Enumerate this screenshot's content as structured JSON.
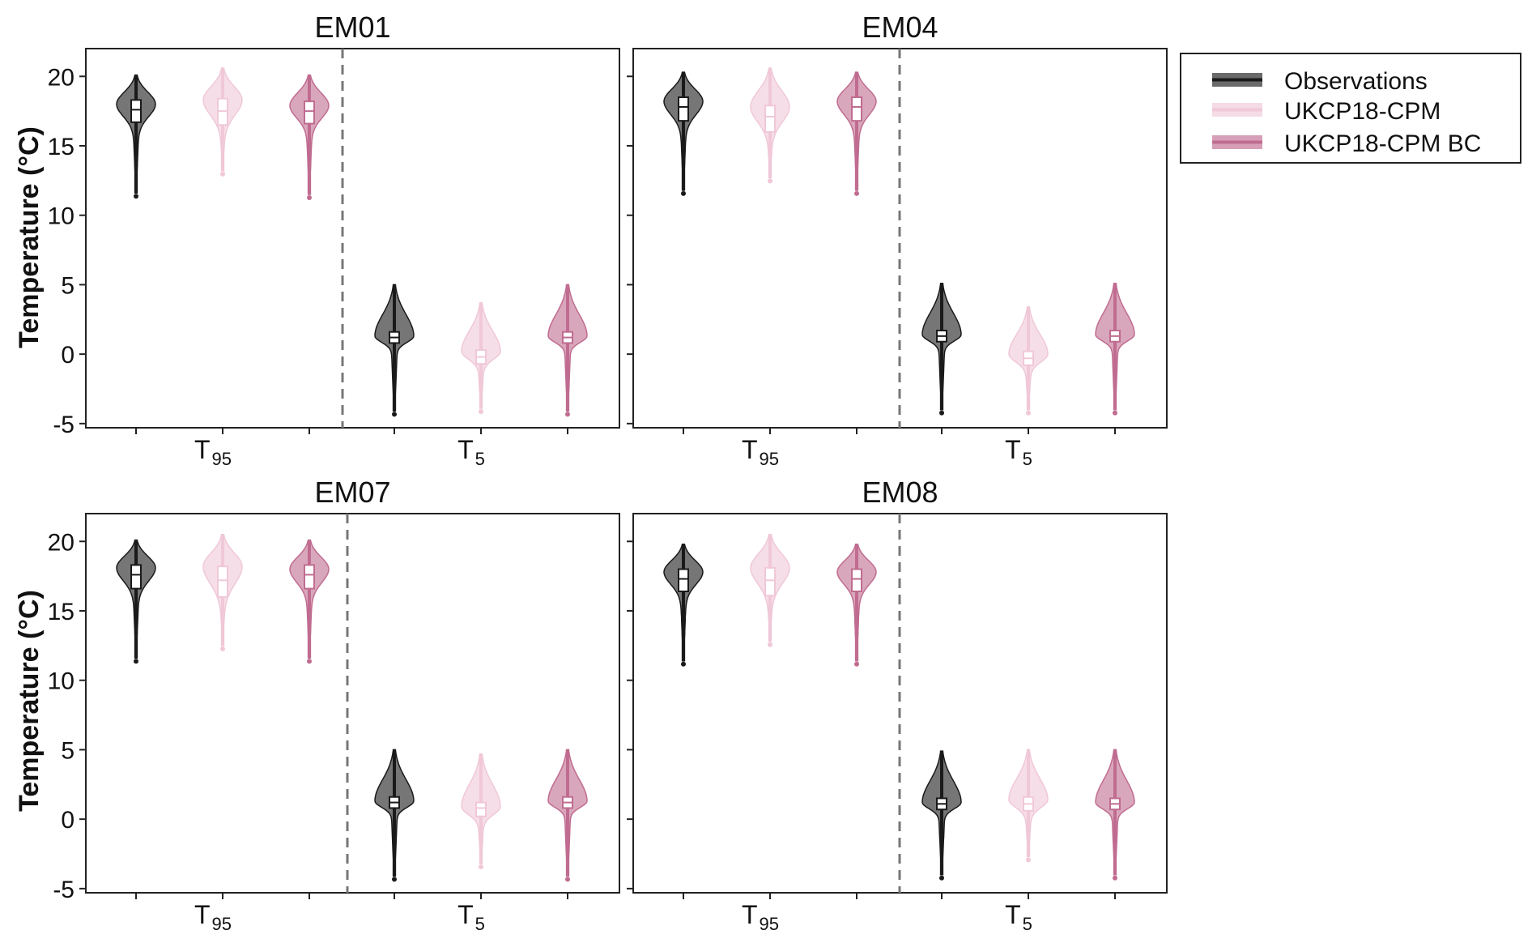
{
  "colors": {
    "observations": "#1a1a1a",
    "ukcp18_cpm": "#f0c8d8",
    "ukcp18_cpm_bc": "#c06c90",
    "frame": "#222222",
    "divider": "#777777"
  },
  "legend": {
    "entries": [
      {
        "key": "observations",
        "label": "Observations"
      },
      {
        "key": "ukcp18_cpm",
        "label": "UKCP18-CPM"
      },
      {
        "key": "ukcp18_cpm_bc",
        "label": "UKCP18-CPM BC"
      }
    ],
    "placement": "top-right, outside panels"
  },
  "axes": {
    "ylabel": "Temperature (°C)",
    "ylim": [
      -5.3,
      22
    ],
    "yticks": [
      {
        "value": -5,
        "label": "-5"
      },
      {
        "value": 0,
        "label": "0"
      },
      {
        "value": 5,
        "label": "5"
      },
      {
        "value": 10,
        "label": "10"
      },
      {
        "value": 15,
        "label": "15"
      },
      {
        "value": 20,
        "label": "20"
      }
    ],
    "categories": [
      {
        "base": "T",
        "sub": "95"
      },
      {
        "base": "T",
        "sub": "5"
      }
    ]
  },
  "chart_data": [
    {
      "type": "violin",
      "title": "EM01",
      "series": [
        {
          "name": "Observations",
          "key": "observations",
          "T95": {
            "min": 11.6,
            "max": 20.1,
            "q1": 16.7,
            "median": 17.6,
            "q3": 18.3,
            "mode": 18.0
          },
          "T5": {
            "min": -4.1,
            "max": 5.0,
            "q1": 0.8,
            "median": 1.2,
            "q3": 1.6,
            "mode": 1.3
          }
        },
        {
          "name": "UKCP18-CPM",
          "key": "ukcp18_cpm",
          "T95": {
            "min": 13.2,
            "max": 20.6,
            "q1": 16.5,
            "median": 17.5,
            "q3": 18.4,
            "mode": 18.3
          },
          "T5": {
            "min": -3.9,
            "max": 3.7,
            "q1": -0.7,
            "median": -0.2,
            "q3": 0.3,
            "mode": 0.2
          }
        },
        {
          "name": "UKCP18-CPM BC",
          "key": "ukcp18_cpm_bc",
          "T95": {
            "min": 11.5,
            "max": 20.1,
            "q1": 16.6,
            "median": 17.5,
            "q3": 18.2,
            "mode": 17.9
          },
          "T5": {
            "min": -4.1,
            "max": 5.0,
            "q1": 0.8,
            "median": 1.2,
            "q3": 1.6,
            "mode": 1.3
          }
        }
      ]
    },
    {
      "type": "violin",
      "title": "EM04",
      "series": [
        {
          "name": "Observations",
          "key": "observations",
          "T95": {
            "min": 11.8,
            "max": 20.3,
            "q1": 16.8,
            "median": 17.8,
            "q3": 18.5,
            "mode": 18.2
          },
          "T5": {
            "min": -4.0,
            "max": 5.1,
            "q1": 0.9,
            "median": 1.3,
            "q3": 1.7,
            "mode": 1.4
          }
        },
        {
          "name": "UKCP18-CPM",
          "key": "ukcp18_cpm",
          "T95": {
            "min": 12.7,
            "max": 20.6,
            "q1": 16.0,
            "median": 17.1,
            "q3": 17.9,
            "mode": 17.8
          },
          "T5": {
            "min": -4.0,
            "max": 3.4,
            "q1": -0.8,
            "median": -0.3,
            "q3": 0.2,
            "mode": 0.0
          }
        },
        {
          "name": "UKCP18-CPM BC",
          "key": "ukcp18_cpm_bc",
          "T95": {
            "min": 11.8,
            "max": 20.3,
            "q1": 16.8,
            "median": 17.8,
            "q3": 18.5,
            "mode": 18.2
          },
          "T5": {
            "min": -4.0,
            "max": 5.1,
            "q1": 0.9,
            "median": 1.3,
            "q3": 1.7,
            "mode": 1.4
          }
        }
      ]
    },
    {
      "type": "violin",
      "title": "EM07",
      "series": [
        {
          "name": "Observations",
          "key": "observations",
          "T95": {
            "min": 11.6,
            "max": 20.1,
            "q1": 16.6,
            "median": 17.6,
            "q3": 18.3,
            "mode": 18.1
          },
          "T5": {
            "min": -4.1,
            "max": 5.0,
            "q1": 0.8,
            "median": 1.2,
            "q3": 1.6,
            "mode": 1.3
          }
        },
        {
          "name": "UKCP18-CPM",
          "key": "ukcp18_cpm",
          "T95": {
            "min": 12.5,
            "max": 20.5,
            "q1": 16.0,
            "median": 17.2,
            "q3": 18.2,
            "mode": 18.2
          },
          "T5": {
            "min": -3.2,
            "max": 4.7,
            "q1": 0.2,
            "median": 0.8,
            "q3": 1.2,
            "mode": 0.9
          }
        },
        {
          "name": "UKCP18-CPM BC",
          "key": "ukcp18_cpm_bc",
          "T95": {
            "min": 11.6,
            "max": 20.1,
            "q1": 16.6,
            "median": 17.6,
            "q3": 18.3,
            "mode": 18.0
          },
          "T5": {
            "min": -4.1,
            "max": 5.0,
            "q1": 0.8,
            "median": 1.2,
            "q3": 1.6,
            "mode": 1.3
          }
        }
      ]
    },
    {
      "type": "violin",
      "title": "EM08",
      "series": [
        {
          "name": "Observations",
          "key": "observations",
          "T95": {
            "min": 11.4,
            "max": 19.8,
            "q1": 16.4,
            "median": 17.3,
            "q3": 18.0,
            "mode": 17.8
          },
          "T5": {
            "min": -4.0,
            "max": 4.9,
            "q1": 0.7,
            "median": 1.1,
            "q3": 1.5,
            "mode": 1.2
          }
        },
        {
          "name": "UKCP18-CPM",
          "key": "ukcp18_cpm",
          "T95": {
            "min": 12.8,
            "max": 20.5,
            "q1": 16.1,
            "median": 17.2,
            "q3": 18.1,
            "mode": 18.1
          },
          "T5": {
            "min": -2.7,
            "max": 5.0,
            "q1": 0.6,
            "median": 1.1,
            "q3": 1.6,
            "mode": 1.4
          }
        },
        {
          "name": "UKCP18-CPM BC",
          "key": "ukcp18_cpm_bc",
          "T95": {
            "min": 11.4,
            "max": 19.8,
            "q1": 16.4,
            "median": 17.3,
            "q3": 18.0,
            "mode": 17.8
          },
          "T5": {
            "min": -4.0,
            "max": 5.0,
            "q1": 0.7,
            "median": 1.1,
            "q3": 1.5,
            "mode": 1.2
          }
        }
      ]
    }
  ]
}
